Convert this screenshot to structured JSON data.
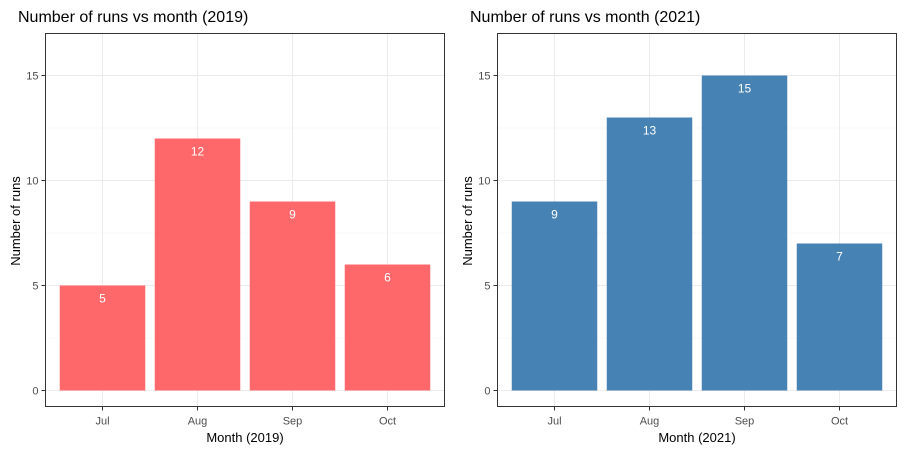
{
  "chart_data": [
    {
      "type": "bar",
      "title": "Number of runs vs month (2019)",
      "xlabel": "Month (2019)",
      "ylabel": "Number of runs",
      "categories": [
        "Jul",
        "Aug",
        "Sep",
        "Oct"
      ],
      "values": [
        5,
        12,
        9,
        6
      ],
      "data_labels": [
        "5",
        "12",
        "9",
        "6"
      ],
      "ylim": [
        0,
        17
      ],
      "yticks": [
        0,
        5,
        10,
        15
      ],
      "ytick_labels": [
        "0",
        "5",
        "10",
        "15"
      ],
      "bar_color": "#ff686b",
      "grid": true
    },
    {
      "type": "bar",
      "title": "Number of runs vs month (2021)",
      "xlabel": "Month (2021)",
      "ylabel": "Number of runs",
      "categories": [
        "Jul",
        "Aug",
        "Sep",
        "Oct"
      ],
      "values": [
        9,
        13,
        15,
        7
      ],
      "data_labels": [
        "9",
        "13",
        "15",
        "7"
      ],
      "ylim": [
        0,
        17
      ],
      "yticks": [
        0,
        5,
        10,
        15
      ],
      "ytick_labels": [
        "0",
        "5",
        "10",
        "15"
      ],
      "bar_color": "#4682b4",
      "grid": true
    }
  ]
}
